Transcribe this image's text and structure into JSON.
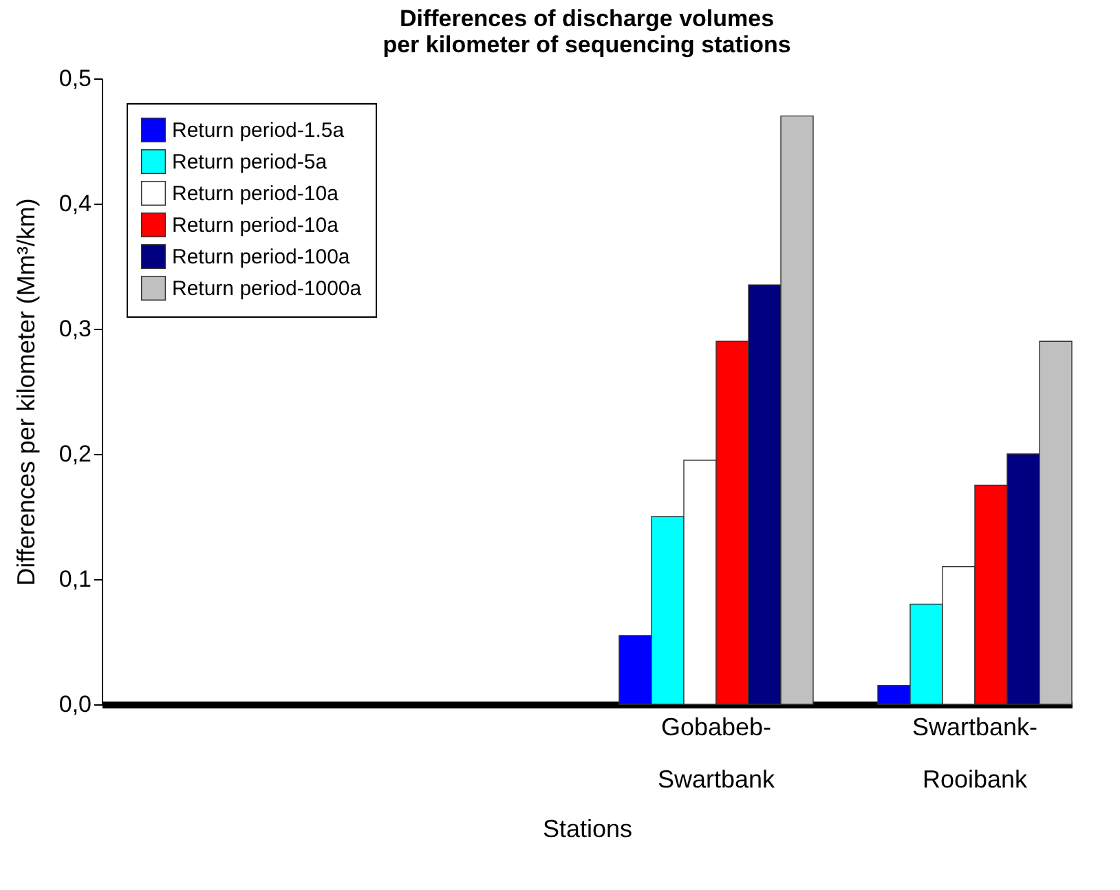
{
  "chart_data": {
    "type": "bar",
    "title": "Differences of discharge volumes\nper kilometer of sequencing stations",
    "xlabel": "Stations",
    "ylabel": "Differences per kilometer (Mm³/km)",
    "categories": [
      null,
      null,
      "Gobabeb-Swartbank",
      "Swartbank-Rooibank"
    ],
    "series": [
      {
        "name": "Return period-1.5a",
        "color": "#0000ff",
        "values": [
          null,
          null,
          0.055,
          0.015
        ]
      },
      {
        "name": "Return period-5a",
        "color": "#00ffff",
        "values": [
          null,
          null,
          0.15,
          0.08
        ]
      },
      {
        "name": "Return period-10a",
        "color": "#ffffff",
        "values": [
          null,
          null,
          0.195,
          0.11
        ]
      },
      {
        "name": "Return period-10a",
        "color": "#ff0000",
        "values": [
          null,
          null,
          0.29,
          0.175
        ]
      },
      {
        "name": "Return period-100a",
        "color": "#000080",
        "values": [
          null,
          null,
          0.335,
          0.2
        ]
      },
      {
        "name": "Return period-1000a",
        "color": "#c0c0c0",
        "values": [
          null,
          null,
          0.47,
          0.29
        ]
      }
    ],
    "ylim": [
      0,
      0.5
    ],
    "yticks": [
      {
        "value": 0,
        "label": "0,0"
      },
      {
        "value": 0.1,
        "label": "0,1"
      },
      {
        "value": 0.2,
        "label": "0,2"
      },
      {
        "value": 0.3,
        "label": "0,3"
      },
      {
        "value": 0.4,
        "label": "0,4"
      },
      {
        "value": 0.5,
        "label": "0,5"
      }
    ],
    "grid": false,
    "legend": "top left"
  }
}
